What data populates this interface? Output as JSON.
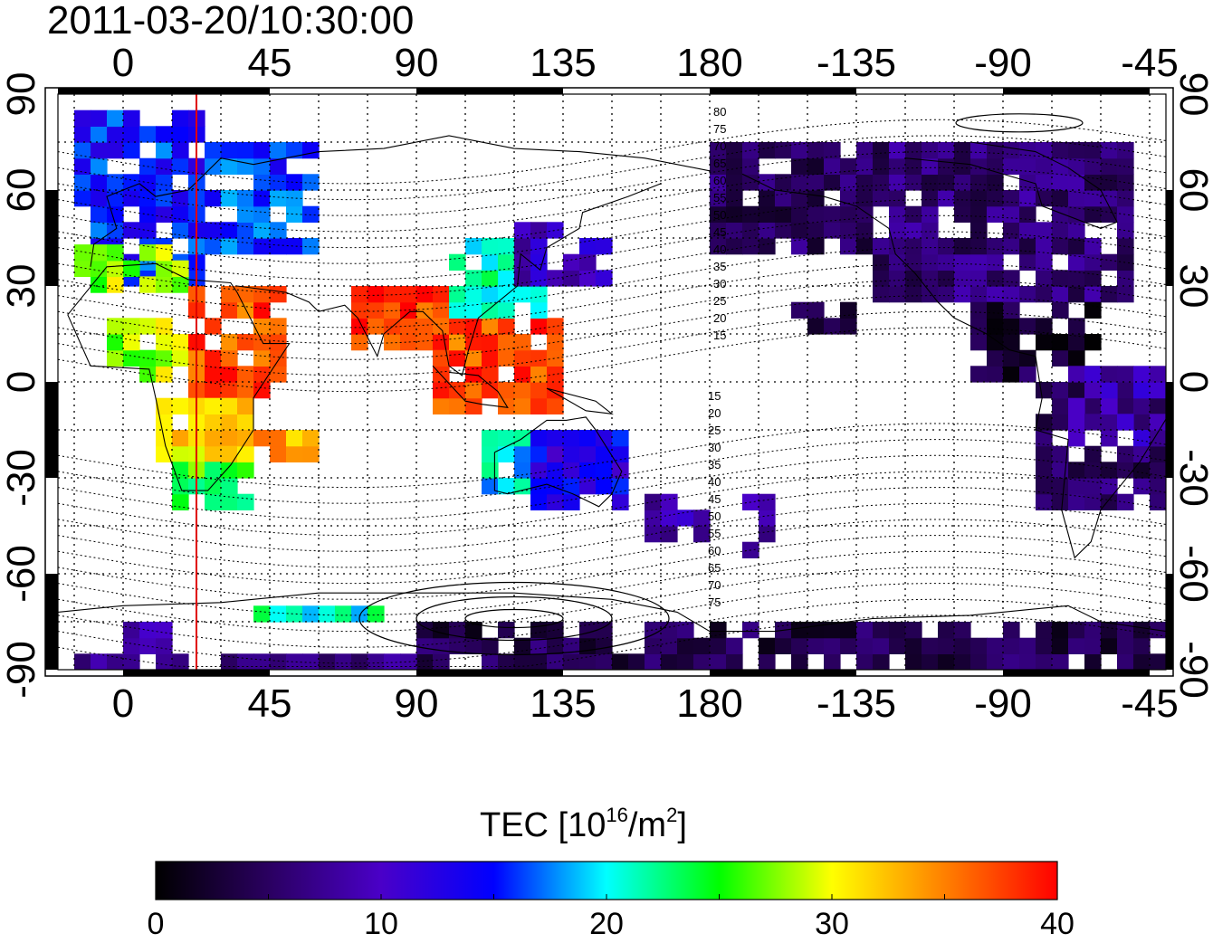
{
  "title": "2011-03-20/10:30:00",
  "map": {
    "projection": "plate carree, centered 135E",
    "lon_range": [
      -20,
      320
    ],
    "lat_range": [
      -90,
      90
    ],
    "x_tick_labels": [
      "0",
      "45",
      "90",
      "135",
      "180",
      "-135",
      "-90",
      "-45"
    ],
    "x_tick_lons": [
      0,
      45,
      90,
      135,
      180,
      225,
      270,
      315
    ],
    "y_tick_labels": [
      "90",
      "60",
      "30",
      "0",
      "-30",
      "-60",
      "-90"
    ],
    "y_tick_lats": [
      90,
      60,
      30,
      0,
      -30,
      -60,
      -90
    ],
    "grid": "dotted every 15 deg",
    "terminator_lon": 22.5,
    "terminator_color": "#e00000",
    "magnetic_contours_north": [
      "80",
      "75",
      "70",
      "65",
      "60",
      "55",
      "50",
      "45",
      "40",
      "35",
      "30",
      "25",
      "20",
      "15"
    ],
    "magnetic_contours_south": [
      "15",
      "20",
      "25",
      "30",
      "35",
      "40",
      "45",
      "50",
      "55",
      "60",
      "65",
      "70",
      "75"
    ]
  },
  "colorbar": {
    "title_prefix": "TEC  [10",
    "title_exp": "16",
    "title_mid": "/m",
    "title_exp2": "2",
    "title_suffix": "]",
    "min": 0,
    "max": 40,
    "tick_labels": [
      "0",
      "10",
      "20",
      "30",
      "40"
    ],
    "tick_values": [
      0,
      10,
      20,
      30,
      40
    ],
    "colors": [
      "#000000",
      "#2a0060",
      "#4a00c8",
      "#0000ff",
      "#00ffff",
      "#00ff00",
      "#ffff00",
      "#ff8000",
      "#ff0000"
    ]
  },
  "tec_regions": [
    {
      "lon": [
        -15,
        25
      ],
      "lat": [
        30,
        85
      ],
      "tec": 15
    },
    {
      "lon": [
        25,
        60
      ],
      "lat": [
        40,
        75
      ],
      "tec": 16
    },
    {
      "lon": [
        -15,
        20
      ],
      "lat": [
        28,
        42
      ],
      "tec": 28
    },
    {
      "lon": [
        -5,
        20
      ],
      "lat": [
        0,
        18
      ],
      "tec": 28
    },
    {
      "lon": [
        20,
        50
      ],
      "lat": [
        -5,
        30
      ],
      "tec": 37
    },
    {
      "lon": [
        10,
        40
      ],
      "lat": [
        -25,
        -5
      ],
      "tec": 32
    },
    {
      "lon": [
        15,
        40
      ],
      "lat": [
        -40,
        -25
      ],
      "tec": 25
    },
    {
      "lon": [
        25,
        60
      ],
      "lat": [
        -25,
        -15
      ],
      "tec": 33
    },
    {
      "lon": [
        70,
        110
      ],
      "lat": [
        10,
        30
      ],
      "tec": 38
    },
    {
      "lon": [
        95,
        135
      ],
      "lat": [
        -10,
        20
      ],
      "tec": 37
    },
    {
      "lon": [
        100,
        130
      ],
      "lat": [
        20,
        45
      ],
      "tec": 22
    },
    {
      "lon": [
        120,
        150
      ],
      "lat": [
        30,
        50
      ],
      "tec": 10
    },
    {
      "lon": [
        110,
        125
      ],
      "lat": [
        -35,
        -15
      ],
      "tec": 20
    },
    {
      "lon": [
        125,
        155
      ],
      "lat": [
        -40,
        -15
      ],
      "tec": 13
    },
    {
      "lon": [
        160,
        180
      ],
      "lat": [
        -50,
        -35
      ],
      "tec": 9
    },
    {
      "lon": [
        180,
        230
      ],
      "lat": [
        40,
        75
      ],
      "tec": 5
    },
    {
      "lon": [
        230,
        310
      ],
      "lat": [
        25,
        75
      ],
      "tec": 6
    },
    {
      "lon": [
        260,
        300
      ],
      "lat": [
        0,
        25
      ],
      "tec": 3
    },
    {
      "lon": [
        280,
        320
      ],
      "lat": [
        -40,
        0
      ],
      "tec": 5
    },
    {
      "lon": [
        290,
        320
      ],
      "lat": [
        -20,
        5
      ],
      "tec": 9
    },
    {
      "lon": [
        90,
        320
      ],
      "lat": [
        -90,
        -75
      ],
      "tec": 4
    },
    {
      "lon": [
        -20,
        90
      ],
      "lat": [
        -90,
        -85
      ],
      "tec": 6
    },
    {
      "lon": [
        40,
        80
      ],
      "lat": [
        -75,
        -70
      ],
      "tec": 21
    },
    {
      "lon": [
        0,
        15
      ],
      "lat": [
        -85,
        -75
      ],
      "tec": 10
    },
    {
      "lon": [
        190,
        200
      ],
      "lat": [
        -55,
        -35
      ],
      "tec": 8
    },
    {
      "lon": [
        205,
        225
      ],
      "lat": [
        15,
        25
      ],
      "tec": 4
    }
  ]
}
